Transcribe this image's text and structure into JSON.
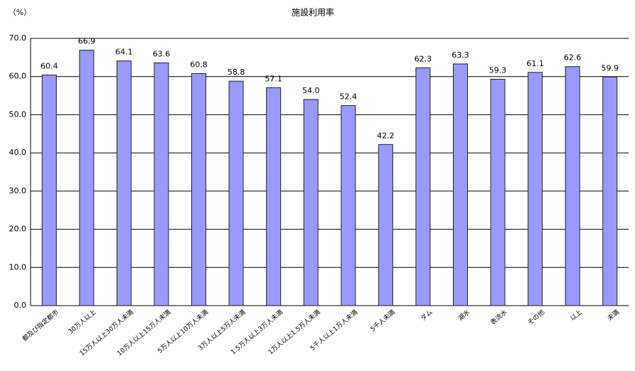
{
  "chart_data": {
    "type": "bar",
    "title": "施設利用率",
    "y_label": "（%）",
    "categories": [
      "都及び指定都市",
      "30万人以上",
      "15万人以上30万人未満",
      "10万人以上15万人未満",
      "5万人以上10万人未満",
      "3万人以上5万人未満",
      "1.5万人以上3万人未満",
      "1万人以上1.5万人未満",
      "5千人以上1万人未満",
      "5千人未満",
      "ダム",
      "湖水",
      "表流水",
      "その他",
      "以上",
      "未満"
    ],
    "values": [
      60.4,
      66.9,
      64.1,
      63.6,
      60.8,
      58.8,
      57.1,
      54.0,
      52.4,
      42.2,
      62.3,
      63.3,
      59.3,
      61.1,
      62.6,
      59.9
    ],
    "value_labels": [
      "60.4",
      "66.9",
      "64.1",
      "63.6",
      "60.8",
      "58.8",
      "57.1",
      "54.0",
      "52.4",
      "42.2",
      "62.3",
      "63.3",
      "59.3",
      "61.1",
      "62.6",
      "59.9"
    ],
    "color": "#9999ff",
    "ylim": [
      0,
      70
    ],
    "yticks": [
      {
        "value": 0,
        "label": "0.0"
      },
      {
        "value": 10,
        "label": "10.0"
      },
      {
        "value": 20,
        "label": "20.0"
      },
      {
        "value": 30,
        "label": "30.0"
      },
      {
        "value": 40,
        "label": "40.0"
      },
      {
        "value": 50,
        "label": "50.0"
      },
      {
        "value": 60,
        "label": "60.0"
      },
      {
        "value": 70,
        "label": "70.0"
      }
    ],
    "grid": true
  }
}
